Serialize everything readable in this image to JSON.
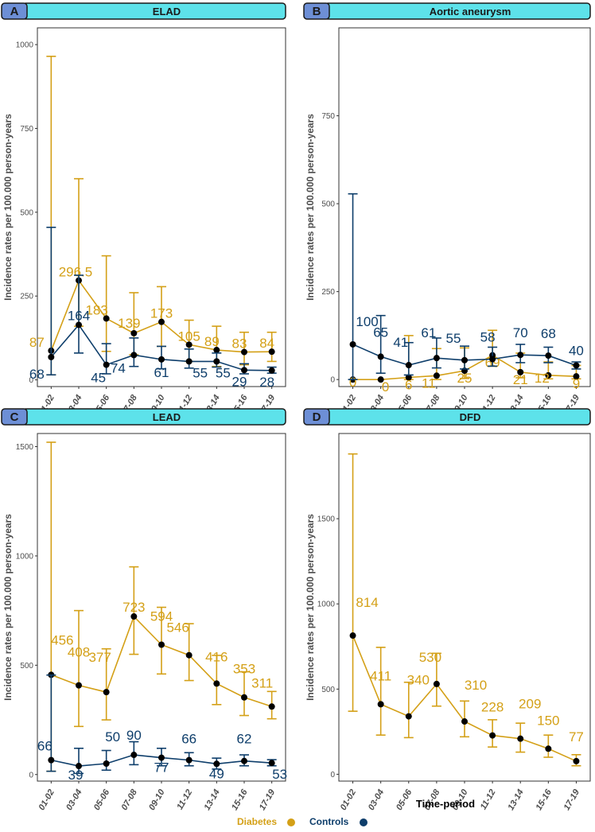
{
  "legend": {
    "diabetes_label": "Diabetes",
    "controls_label": "Controls"
  },
  "colors": {
    "diabetes": "#D4A017",
    "controls": "#0E3E6B",
    "strip": "#5DE2EA",
    "letter_box": "#6D8FD6"
  },
  "chart_data": [
    {
      "type": "line",
      "letter": "A",
      "title": "ELAD",
      "ylabel": "Incidence rates per 100.000 person-years",
      "xlabel": "Time-period",
      "categories": [
        "01-02",
        "03-04",
        "05-06",
        "07-08",
        "09-10",
        "11-12",
        "13-14",
        "15-16",
        "17-19"
      ],
      "ylim": [
        -20,
        1050
      ],
      "yticks": [
        0,
        250,
        500,
        750,
        1000
      ],
      "series": [
        {
          "name": "Diabetes",
          "values": [
            87,
            296.5,
            183,
            139,
            173,
            105,
            89,
            83,
            84
          ],
          "lower": [
            15,
            160,
            85,
            75,
            100,
            55,
            40,
            45,
            55
          ],
          "upper": [
            965,
            600,
            370,
            260,
            278,
            178,
            160,
            142,
            142
          ],
          "labels": [
            "87",
            "296.5",
            "183",
            "139",
            "173",
            "105",
            "89",
            "83",
            "84"
          ]
        },
        {
          "name": "Controls",
          "values": [
            68,
            164,
            45,
            74,
            61,
            55,
            55,
            29,
            28
          ],
          "lower": [
            15,
            80,
            18,
            40,
            33,
            35,
            38,
            18,
            20
          ],
          "upper": [
            455,
            312,
            108,
            125,
            100,
            92,
            80,
            48,
            38
          ],
          "labels": [
            "68",
            "164",
            "45",
            "74",
            "61",
            "55",
            "55",
            "29",
            "28"
          ]
        }
      ]
    },
    {
      "type": "line",
      "letter": "B",
      "title": "Aortic aneurysm",
      "ylabel": "Incidence rates per 100.000 person-years",
      "xlabel": "",
      "categories": [
        "01-02",
        "03-04",
        "05-06",
        "07-08",
        "09-10",
        "11-12",
        "13-14",
        "15-16",
        "17-19"
      ],
      "ylim": [
        -20,
        1000
      ],
      "yticks": [
        0,
        250,
        500,
        750
      ],
      "series": [
        {
          "name": "Diabetes",
          "values": [
            0,
            0,
            6,
            11,
            25,
            69,
            21,
            12,
            9
          ],
          "lower": [
            0,
            0,
            0,
            0,
            3,
            38,
            5,
            2,
            2
          ],
          "upper": [
            0,
            0,
            125,
            88,
            90,
            140,
            75,
            50,
            40
          ],
          "labels": [
            "0",
            "0",
            "6",
            "11",
            "25",
            "69",
            "21",
            "12",
            "9"
          ]
        },
        {
          "name": "Controls",
          "values": [
            100,
            65,
            41,
            61,
            55,
            58,
            70,
            68,
            40
          ],
          "lower": [
            0,
            18,
            13,
            33,
            30,
            38,
            48,
            48,
            30
          ],
          "upper": [
            528,
            182,
            105,
            118,
            95,
            92,
            100,
            92,
            50
          ],
          "labels": [
            "100",
            "65",
            "41",
            "61",
            "55",
            "58",
            "70",
            "68",
            "40"
          ]
        }
      ]
    },
    {
      "type": "line",
      "letter": "C",
      "title": "LEAD",
      "ylabel": "Incidence rates per 100.000 person-years",
      "xlabel": "",
      "categories": [
        "01-02",
        "03-04",
        "05-06",
        "07-08",
        "09-10",
        "11-12",
        "13-14",
        "15-16",
        "17-19"
      ],
      "ylim": [
        -30,
        1560
      ],
      "yticks": [
        0,
        500,
        1000,
        1500
      ],
      "series": [
        {
          "name": "Diabetes",
          "values": [
            456,
            408,
            377,
            723,
            594,
            546,
            416,
            353,
            311
          ],
          "lower": [
            15,
            220,
            250,
            550,
            460,
            430,
            320,
            270,
            255
          ],
          "upper": [
            1520,
            750,
            575,
            950,
            765,
            690,
            545,
            470,
            380
          ],
          "labels": [
            "456",
            "408",
            "377",
            "723",
            "594",
            "546",
            "416",
            "353",
            "311"
          ]
        },
        {
          "name": "Controls",
          "values": [
            66,
            39,
            50,
            90,
            77,
            66,
            49,
            62,
            53
          ],
          "lower": [
            15,
            5,
            20,
            45,
            40,
            40,
            25,
            40,
            40
          ],
          "upper": [
            455,
            120,
            110,
            150,
            120,
            100,
            75,
            90,
            68
          ],
          "labels": [
            "66",
            "39",
            "50",
            "90",
            "77",
            "66",
            "49",
            "62",
            "53"
          ]
        }
      ]
    },
    {
      "type": "line",
      "letter": "D",
      "title": "DFD",
      "ylabel": "Incidence rates per 100.000 person-years",
      "xlabel": "Time-period",
      "categories": [
        "01-02",
        "03-04",
        "05-06",
        "07-08",
        "09-10",
        "11-12",
        "13-14",
        "15-16",
        "17-19"
      ],
      "ylim": [
        -40,
        2000
      ],
      "yticks": [
        0,
        500,
        1000,
        1500
      ],
      "series": [
        {
          "name": "Diabetes",
          "values": [
            814,
            411,
            340,
            530,
            310,
            228,
            209,
            150,
            77
          ],
          "lower": [
            370,
            230,
            215,
            400,
            220,
            160,
            130,
            100,
            50
          ],
          "upper": [
            1880,
            745,
            540,
            710,
            430,
            320,
            300,
            230,
            115
          ],
          "labels": [
            "814",
            "411",
            "340",
            "530",
            "310",
            "228",
            "209",
            "150",
            "77"
          ]
        }
      ]
    }
  ]
}
